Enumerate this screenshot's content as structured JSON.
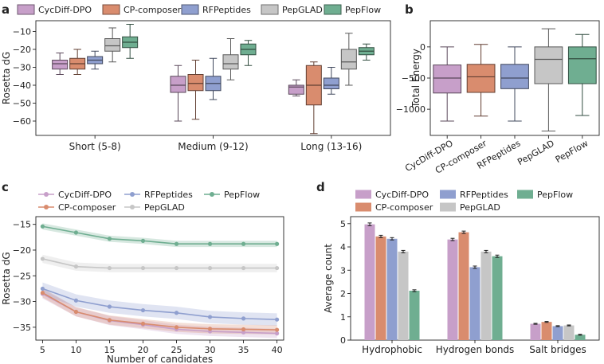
{
  "panel_labels": [
    "a",
    "b",
    "c",
    "d"
  ],
  "colors": {
    "CycDiff-DPO": "#c79fc9",
    "CP-composer": "#d98c6e",
    "RFPeptides": "#8f9fcf",
    "PepGLAD": "#c6c6c6",
    "PepFlow": "#6fae91"
  },
  "chart_data": [
    {
      "id": "a",
      "type": "box",
      "title": "",
      "xlabel": "",
      "ylabel": "Rosetta dG",
      "ylim": [
        -68,
        -4
      ],
      "yticks": [
        -60,
        -50,
        -40,
        -30,
        -20,
        -10
      ],
      "categories": [
        "Short (5-8)",
        "Medium (9-12)",
        "Long (13-16)"
      ],
      "legend": [
        "CycDiff-DPO",
        "CP-composer",
        "RFPeptides",
        "PepGLAD",
        "PepFlow"
      ],
      "series": [
        {
          "name": "CycDiff-DPO",
          "boxes": [
            {
              "wl": -34,
              "q1": -31,
              "med": -28,
              "q3": -26,
              "wh": -22
            },
            {
              "wl": -60,
              "q1": -44,
              "med": -40,
              "q3": -35,
              "wh": -29
            },
            {
              "wl": -46,
              "q1": -45,
              "med": -41,
              "q3": -40,
              "wh": -37
            }
          ]
        },
        {
          "name": "CP-composer",
          "boxes": [
            {
              "wl": -34,
              "q1": -31,
              "med": -28,
              "q3": -25,
              "wh": -20
            },
            {
              "wl": -59,
              "q1": -43,
              "med": -39,
              "q3": -34,
              "wh": -26
            },
            {
              "wl": -67,
              "q1": -51,
              "med": -40,
              "q3": -29,
              "wh": -27
            }
          ]
        },
        {
          "name": "RFPeptides",
          "boxes": [
            {
              "wl": -31,
              "q1": -28,
              "med": -26,
              "q3": -24,
              "wh": -21
            },
            {
              "wl": -48,
              "q1": -43,
              "med": -39,
              "q3": -35,
              "wh": -25
            },
            {
              "wl": -45,
              "q1": -42,
              "med": -40,
              "q3": -36,
              "wh": -30
            }
          ]
        },
        {
          "name": "PepGLAD",
          "boxes": [
            {
              "wl": -27,
              "q1": -21,
              "med": -18,
              "q3": -14,
              "wh": -8
            },
            {
              "wl": -37,
              "q1": -31,
              "med": -28,
              "q3": -23,
              "wh": -14
            },
            {
              "wl": -40,
              "q1": -31,
              "med": -27,
              "q3": -20,
              "wh": -11
            }
          ]
        },
        {
          "name": "PepFlow",
          "boxes": [
            {
              "wl": -25,
              "q1": -19,
              "med": -16,
              "q3": -13,
              "wh": -6
            },
            {
              "wl": -29,
              "q1": -23,
              "med": -20,
              "q3": -17,
              "wh": -15
            },
            {
              "wl": -26,
              "q1": -23,
              "med": -21,
              "q3": -19,
              "wh": -17
            }
          ]
        }
      ]
    },
    {
      "id": "b",
      "type": "box",
      "title": "",
      "xlabel": "",
      "ylabel": "Total Energy",
      "ylim": [
        -1420,
        420
      ],
      "yticks": [
        -1000,
        -500,
        0
      ],
      "categories": [
        "CycDiff-DPO",
        "CP-composer",
        "RFPeptides",
        "PepGLAD",
        "PepFlow"
      ],
      "boxes": [
        {
          "name": "CycDiff-DPO",
          "wl": -1190,
          "q1": -740,
          "med": -500,
          "q3": -290,
          "wh": 0
        },
        {
          "name": "CP-composer",
          "wl": -1110,
          "q1": -730,
          "med": -480,
          "q3": -280,
          "wh": 40
        },
        {
          "name": "RFPeptides",
          "wl": -1190,
          "q1": -670,
          "med": -500,
          "q3": -280,
          "wh": 0
        },
        {
          "name": "PepGLAD",
          "wl": -1350,
          "q1": -590,
          "med": -200,
          "q3": 0,
          "wh": 290
        },
        {
          "name": "PepFlow",
          "wl": -1100,
          "q1": -590,
          "med": -190,
          "q3": 0,
          "wh": 200
        }
      ]
    },
    {
      "id": "c",
      "type": "line",
      "title": "",
      "xlabel": "Number of candidates",
      "ylabel": "Rosetta dG",
      "xlim": [
        4,
        41
      ],
      "ylim": [
        -37.5,
        -13.5
      ],
      "xticks": [
        5,
        10,
        15,
        20,
        25,
        30,
        35,
        40
      ],
      "yticks": [
        -35,
        -30,
        -25,
        -20,
        -15
      ],
      "legend": [
        "CycDiff-DPO",
        "RFPeptides",
        "PepFlow",
        "CP-composer",
        "PepGLAD"
      ],
      "x": [
        5,
        10,
        15,
        20,
        25,
        30,
        35,
        40
      ],
      "series": [
        {
          "name": "CycDiff-DPO",
          "values": [
            -28.5,
            -32.0,
            -33.7,
            -34.5,
            -35.4,
            -35.8,
            -36.0,
            -36.2
          ],
          "band": 0.9
        },
        {
          "name": "CP-composer",
          "values": [
            -28.3,
            -32.0,
            -33.6,
            -34.3,
            -35.0,
            -35.3,
            -35.4,
            -35.5
          ],
          "band": 0.9
        },
        {
          "name": "RFPeptides",
          "values": [
            -27.5,
            -29.8,
            -31.0,
            -31.7,
            -32.2,
            -33.0,
            -33.3,
            -33.5
          ],
          "band": 1.2
        },
        {
          "name": "PepGLAD",
          "values": [
            -21.7,
            -23.2,
            -23.5,
            -23.5,
            -23.5,
            -23.5,
            -23.5,
            -23.5
          ],
          "band": 0.8
        },
        {
          "name": "PepFlow",
          "values": [
            -15.4,
            -16.6,
            -17.8,
            -18.2,
            -18.8,
            -18.8,
            -18.8,
            -18.8
          ],
          "band": 0.6
        }
      ]
    },
    {
      "id": "d",
      "type": "bar",
      "title": "",
      "xlabel": "",
      "ylabel": "Average count",
      "ylim": [
        0,
        5.3
      ],
      "yticks": [
        0,
        1,
        2,
        3,
        4,
        5
      ],
      "categories": [
        "Hydrophobic",
        "Hydrogen bonds",
        "Salt bridges"
      ],
      "legend": [
        "CycDiff-DPO",
        "RFPeptides",
        "PepFlow",
        "CP-composer",
        "PepGLAD"
      ],
      "series": [
        {
          "name": "CycDiff-DPO",
          "values": [
            4.97,
            4.32,
            0.7
          ],
          "err": [
            0.06,
            0.05,
            0.02
          ]
        },
        {
          "name": "CP-composer",
          "values": [
            4.45,
            4.63,
            0.78
          ],
          "err": [
            0.05,
            0.05,
            0.02
          ]
        },
        {
          "name": "RFPeptides",
          "values": [
            4.35,
            3.13,
            0.6
          ],
          "err": [
            0.05,
            0.05,
            0.02
          ]
        },
        {
          "name": "PepGLAD",
          "values": [
            3.8,
            3.8,
            0.63
          ],
          "err": [
            0.05,
            0.05,
            0.02
          ]
        },
        {
          "name": "PepFlow",
          "values": [
            2.12,
            3.6,
            0.23
          ],
          "err": [
            0.04,
            0.05,
            0.02
          ]
        }
      ]
    }
  ]
}
